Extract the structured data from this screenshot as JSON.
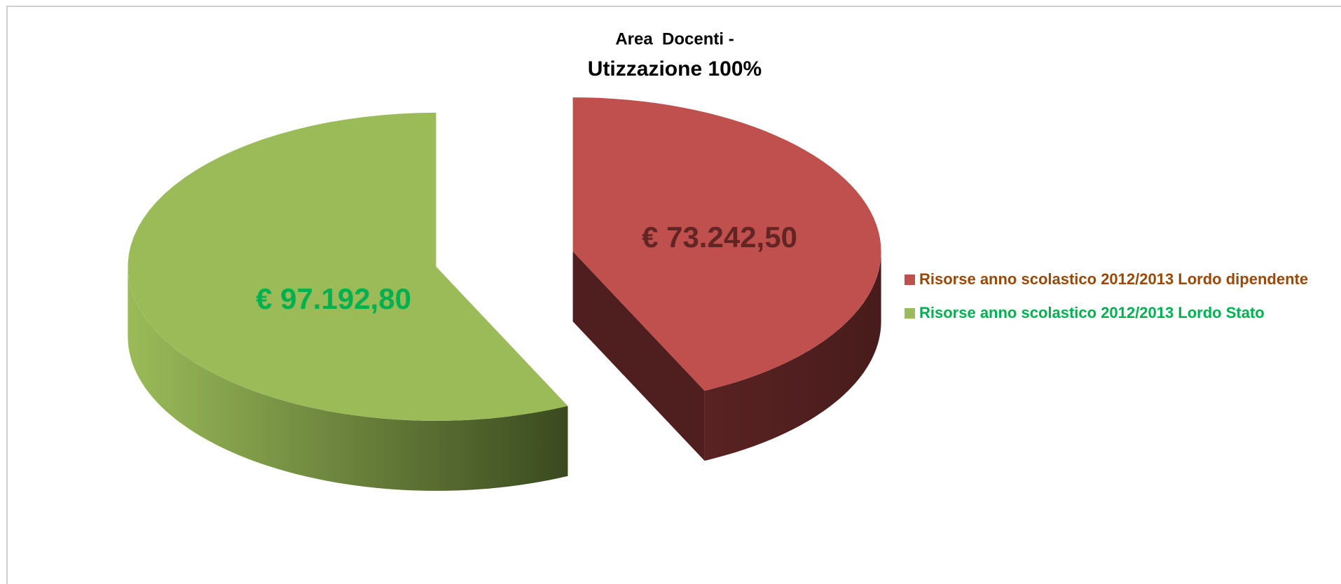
{
  "chart_data": {
    "type": "pie",
    "title": "Area  Docenti -",
    "subtitle": "Utizzazione 100%",
    "categories": [
      "Risorse anno scolastico 2012/2013 Lordo dipendente",
      "Risorse anno scolastico 2012/2013 Lordo Stato"
    ],
    "values": [
      73242.5,
      97192.8
    ],
    "value_labels": [
      "€ 73.242,50",
      "€ 97.192,80"
    ],
    "colors": [
      "#c0504d",
      "#9bbb59"
    ],
    "label_colors": [
      "#632523",
      "#00b050"
    ],
    "legend_colors": [
      "#984807",
      "#00b050"
    ],
    "legend": "right"
  }
}
